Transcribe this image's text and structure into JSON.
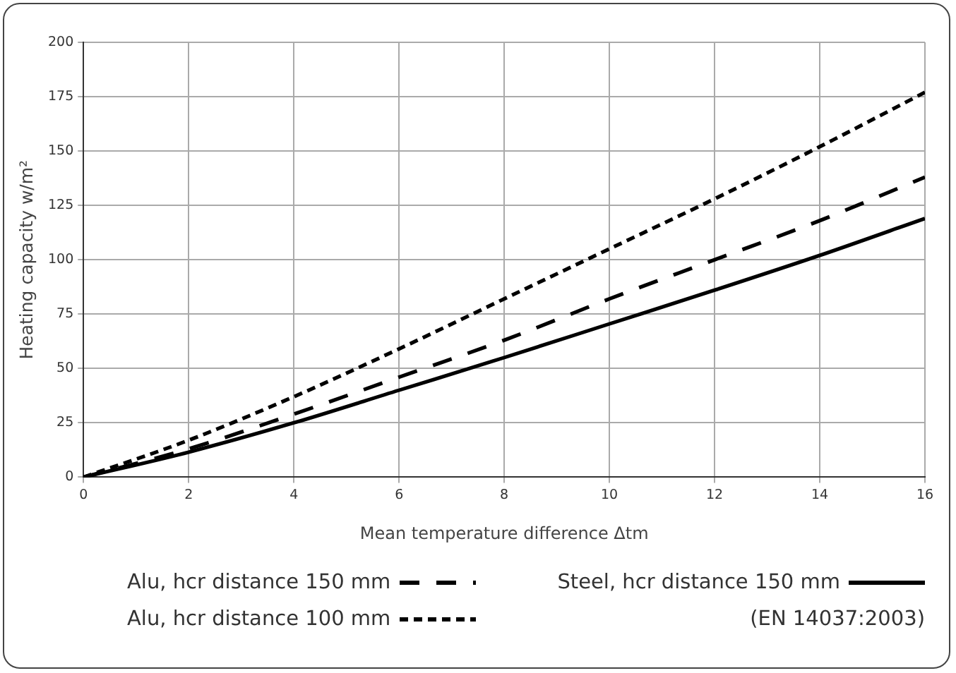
{
  "chart_data": {
    "type": "line",
    "xlabel": "Mean temperature difference Δtm",
    "ylabel": "Heating capacity w/m²",
    "x": [
      0,
      2,
      4,
      6,
      8,
      10,
      12,
      14,
      16
    ],
    "series": [
      {
        "name": "Alu, hcr distance 150 mm",
        "color": "#000000",
        "line_style": "dashed",
        "values": [
          0,
          13,
          29,
          46,
          63,
          82,
          100,
          118,
          138
        ]
      },
      {
        "name": "Steel, hcr distance 150 mm",
        "color": "#000000",
        "line_style": "solid",
        "values": [
          0,
          11.5,
          25,
          40,
          55,
          70.5,
          86,
          102,
          119
        ]
      },
      {
        "name": "Alu, hcr distance 100 mm",
        "color": "#000000",
        "line_style": "dotted",
        "values": [
          0,
          17,
          37,
          59,
          82,
          105,
          128,
          152,
          177
        ]
      }
    ],
    "xlim": [
      0,
      16
    ],
    "xticks": [
      0,
      2,
      4,
      6,
      8,
      10,
      12,
      14,
      16
    ],
    "ylim": [
      0,
      200
    ],
    "yticks": [
      0,
      25,
      50,
      75,
      100,
      125,
      150,
      175,
      200
    ],
    "grid": true,
    "legend": "bottom",
    "marker": "none",
    "annotations": [
      "(EN 14037:2003)"
    ]
  }
}
